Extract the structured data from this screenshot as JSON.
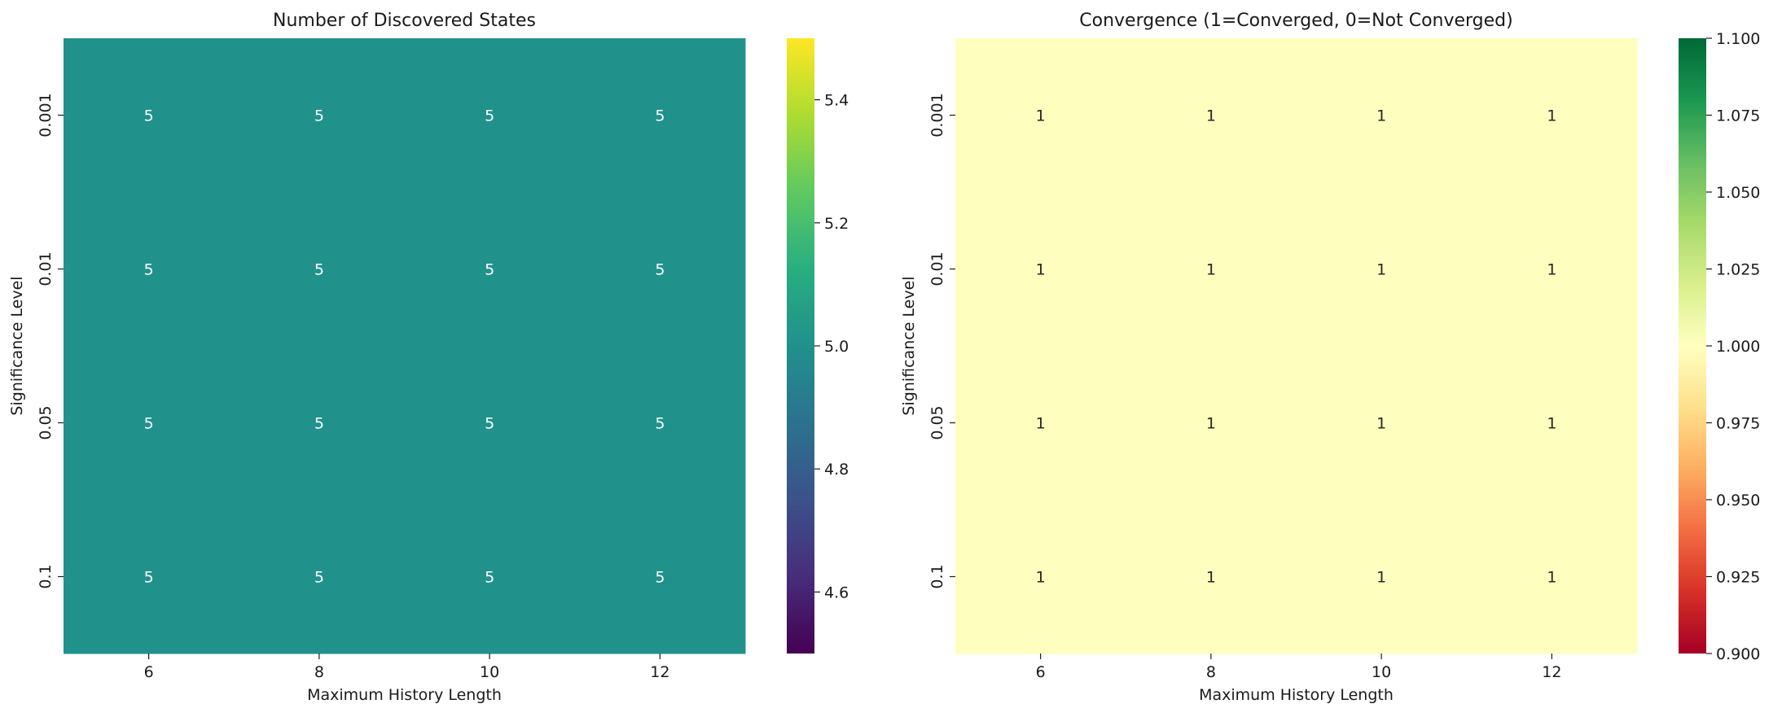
{
  "chart_data": [
    {
      "type": "heatmap",
      "title": "Number of Discovered States",
      "xlabel": "Maximum History Length",
      "ylabel": "Significance Level",
      "x_categories": [
        "6",
        "8",
        "10",
        "12"
      ],
      "y_categories": [
        "0.001",
        "0.01",
        "0.05",
        "0.1"
      ],
      "values": [
        [
          5,
          5,
          5,
          5
        ],
        [
          5,
          5,
          5,
          5
        ],
        [
          5,
          5,
          5,
          5
        ],
        [
          5,
          5,
          5,
          5
        ]
      ],
      "annotations": [
        [
          "5",
          "5",
          "5",
          "5"
        ],
        [
          "5",
          "5",
          "5",
          "5"
        ],
        [
          "5",
          "5",
          "5",
          "5"
        ],
        [
          "5",
          "5",
          "5",
          "5"
        ]
      ],
      "colormap": "viridis",
      "cell_color": "#21918c",
      "annotation_color": "#ffffff",
      "colorbar": {
        "range": [
          4.5,
          5.5
        ],
        "ticks": [
          4.6,
          4.8,
          5.0,
          5.2,
          5.4
        ],
        "tick_labels": [
          "4.6",
          "4.8",
          "5.0",
          "5.2",
          "5.4"
        ],
        "stops": [
          "#440154",
          "#472d7b",
          "#3b528b",
          "#2c728e",
          "#21918c",
          "#28ae80",
          "#5ec962",
          "#addc30",
          "#fde725"
        ]
      }
    },
    {
      "type": "heatmap",
      "title": "Convergence (1=Converged, 0=Not Converged)",
      "xlabel": "Maximum History Length",
      "ylabel": "Significance Level",
      "x_categories": [
        "6",
        "8",
        "10",
        "12"
      ],
      "y_categories": [
        "0.001",
        "0.01",
        "0.05",
        "0.1"
      ],
      "values": [
        [
          1,
          1,
          1,
          1
        ],
        [
          1,
          1,
          1,
          1
        ],
        [
          1,
          1,
          1,
          1
        ],
        [
          1,
          1,
          1,
          1
        ]
      ],
      "annotations": [
        [
          "1",
          "1",
          "1",
          "1"
        ],
        [
          "1",
          "1",
          "1",
          "1"
        ],
        [
          "1",
          "1",
          "1",
          "1"
        ],
        [
          "1",
          "1",
          "1",
          "1"
        ]
      ],
      "colormap": "RdYlGn",
      "cell_color": "#feffbe",
      "annotation_color": "#262626",
      "colorbar": {
        "range": [
          0.9,
          1.1
        ],
        "ticks": [
          0.9,
          0.925,
          0.95,
          0.975,
          1.0,
          1.025,
          1.05,
          1.075,
          1.1
        ],
        "tick_labels": [
          "0.900",
          "0.925",
          "0.950",
          "0.975",
          "1.000",
          "1.025",
          "1.050",
          "1.075",
          "1.100"
        ],
        "stops": [
          "#a50026",
          "#d73027",
          "#f46d43",
          "#fdae61",
          "#fee08b",
          "#ffffbf",
          "#d9ef8b",
          "#a6d96a",
          "#66bd63",
          "#1a9850",
          "#006837"
        ]
      }
    }
  ]
}
